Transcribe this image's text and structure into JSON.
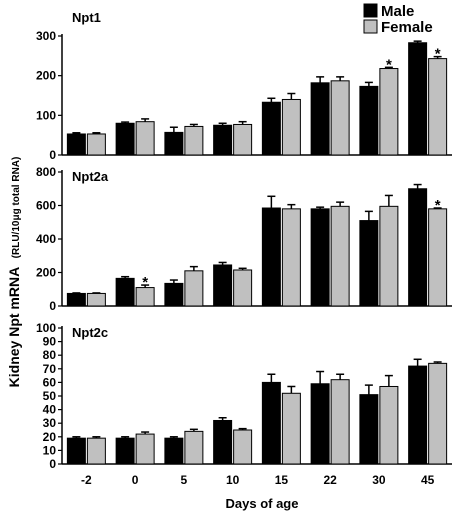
{
  "chart_data": {
    "type": "bar",
    "categories": [
      "-2",
      "0",
      "5",
      "10",
      "15",
      "22",
      "30",
      "45"
    ],
    "xlabel": "Days of age",
    "ylabel": "Kidney Npt mRNA",
    "ylabel_unit": "(RLU/10μg total RNA)",
    "legend": {
      "placement": "top-right",
      "entries": [
        "Male",
        "Female"
      ]
    },
    "colors": {
      "male": "#000000",
      "female": "#c0c0c0"
    },
    "panels": [
      {
        "title": "Npt1",
        "ylim": [
          0,
          300
        ],
        "yticks": [
          "0",
          "100",
          "200",
          "300"
        ],
        "series": [
          {
            "name": "Male",
            "values": [
              53,
              80,
              57,
              75,
              133,
              182,
              173,
              283
            ],
            "errors": [
              3,
              3,
              13,
              5,
              10,
              15,
              10,
              4
            ]
          },
          {
            "name": "Female",
            "values": [
              53,
              84,
              72,
              77,
              140,
              187,
              218,
              243
            ],
            "errors": [
              3,
              7,
              5,
              7,
              15,
              10,
              3,
              5
            ]
          }
        ],
        "significant": [
          {
            "category": "30",
            "series": "Female"
          },
          {
            "category": "45",
            "series": "Female"
          }
        ]
      },
      {
        "title": "Npt2a",
        "ylim": [
          0,
          800
        ],
        "yticks": [
          "0",
          "200",
          "400",
          "600",
          "800"
        ],
        "series": [
          {
            "name": "Male",
            "values": [
              75,
              165,
              135,
              245,
              585,
              580,
              510,
              700
            ],
            "errors": [
              3,
              10,
              20,
              15,
              70,
              10,
              55,
              25
            ]
          },
          {
            "name": "Female",
            "values": [
              75,
              110,
              210,
              215,
              580,
              595,
              595,
              580
            ],
            "errors": [
              3,
              15,
              25,
              10,
              25,
              25,
              65,
              5
            ]
          }
        ],
        "significant": [
          {
            "category": "0",
            "series": "Female"
          },
          {
            "category": "45",
            "series": "Female"
          }
        ]
      },
      {
        "title": "Npt2c",
        "ylim": [
          0,
          100
        ],
        "yticks": [
          "0",
          "10",
          "20",
          "30",
          "40",
          "50",
          "60",
          "70",
          "80",
          "90",
          "100"
        ],
        "series": [
          {
            "name": "Male",
            "values": [
              19,
              19,
              19,
              32,
              60,
              59,
              51,
              72
            ],
            "errors": [
              1,
              1,
              1,
              2,
              6,
              9,
              7,
              5
            ]
          },
          {
            "name": "Female",
            "values": [
              19,
              22,
              24,
              25,
              52,
              62,
              57,
              74
            ],
            "errors": [
              1,
              1.5,
              1.5,
              1,
              5,
              4,
              8,
              1
            ]
          }
        ],
        "significant": []
      }
    ],
    "annotation_symbol": "*"
  }
}
